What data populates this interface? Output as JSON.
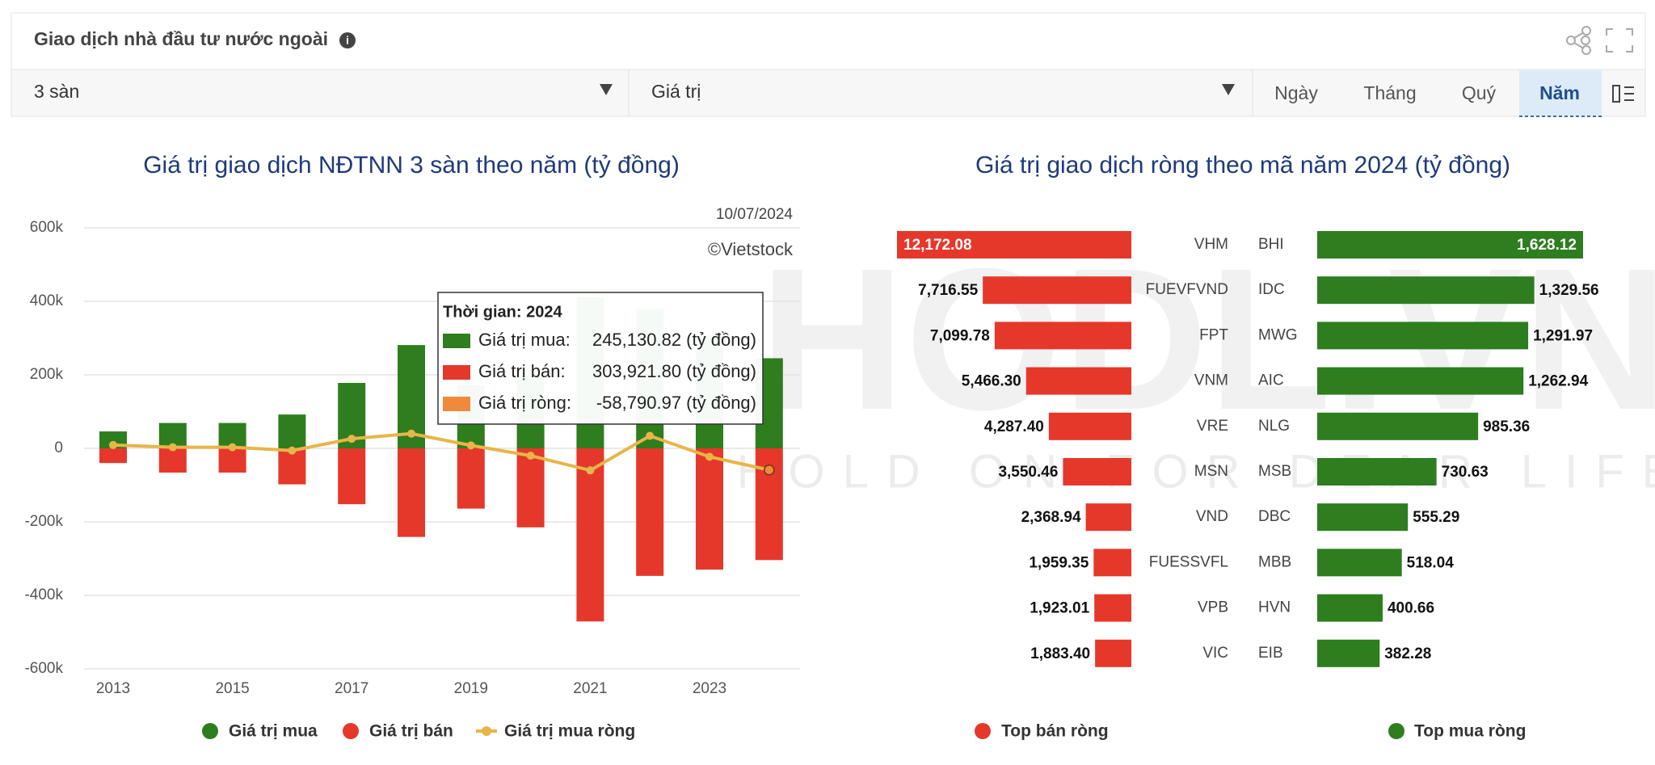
{
  "ui": {
    "title": "Giao dịch nhà đầu tư nước ngoài",
    "filters": [
      "3 sàn",
      "Giá trị"
    ],
    "tabs": [
      "Ngày",
      "Tháng",
      "Quý",
      "Năm"
    ],
    "active_tab": 3
  },
  "watermark": {
    "title": "HODL.VN",
    "subtitle": "HOLD ON FOR DEAR LIFE"
  },
  "chart_data": [
    {
      "type": "bar",
      "title": "Giá trị giao dịch NĐTNN 3 sàn theo năm (tỷ đồng)",
      "annotations": [
        "10/07/2024",
        "©Vietstock"
      ],
      "categories": [
        "2013",
        null,
        "2015",
        null,
        "2017",
        null,
        "2019",
        null,
        "2021",
        null,
        "2023",
        null
      ],
      "series": [
        {
          "name": "Giá trị mua",
          "color": "#2e7d1f",
          "values": [
            46000,
            69000,
            69000,
            92000,
            178000,
            281000,
            172000,
            195000,
            411000,
            381000,
            307000,
            245130.82
          ]
        },
        {
          "name": "Giá trị bán",
          "color": "#e5382b",
          "values": [
            -40000,
            -66000,
            -66000,
            -98000,
            -152000,
            -241000,
            -164000,
            -215000,
            -471000,
            -347000,
            -330000,
            -303921.8
          ]
        },
        {
          "name": "Giá trị mua ròng",
          "color": "#e8b547",
          "type": "line",
          "values": [
            9000,
            3000,
            3000,
            -6000,
            26000,
            40000,
            8000,
            -20000,
            -60000,
            34000,
            -23000,
            -58790.97
          ]
        }
      ],
      "ylim": [
        -600000,
        600000
      ],
      "yticks": [
        {
          "value": -600000,
          "label": "-600k"
        },
        {
          "value": -400000,
          "label": "-400k"
        },
        {
          "value": -200000,
          "label": "-200k"
        },
        0,
        {
          "value": 200000,
          "label": "200k"
        },
        {
          "value": 400000,
          "label": "400k"
        },
        {
          "value": 600000,
          "label": "600k"
        }
      ],
      "grid": true,
      "legend": "bottom",
      "tooltip": {
        "title": "Thời gian: 2024",
        "items": [
          {
            "label": "Giá trị mua:",
            "value": "245,130.82 (tỷ đồng)",
            "color": "#2e7d1f"
          },
          {
            "label": "Giá trị bán:",
            "value": "303,921.80 (tỷ đồng)",
            "color": "#e5382b"
          },
          {
            "label": "Giá trị ròng:",
            "value": "-58,790.97 (tỷ đồng)",
            "color": "#ef8a3c"
          }
        ]
      }
    },
    {
      "type": "barh",
      "title": "Giá trị giao dịch ròng theo mã năm 2024 (tỷ đồng)",
      "legend": "bottom",
      "series": [
        {
          "name": "Top bán ròng",
          "color": "#e5382b",
          "categories": [
            "VHM",
            "FUEVFVND",
            "FPT",
            "VNM",
            "VRE",
            "MSN",
            "VND",
            "FUESSVFL",
            "VPB",
            "VIC"
          ],
          "values": [
            12172.08,
            7716.55,
            7099.78,
            5466.3,
            4287.4,
            3550.46,
            2368.94,
            1959.35,
            1923.01,
            1883.4
          ],
          "value_labels": [
            "12,172.08",
            "7,716.55",
            "7,099.78",
            "5,466.30",
            "4,287.40",
            "3,550.46",
            "2,368.94",
            "1,959.35",
            "1,923.01",
            "1,883.40"
          ]
        },
        {
          "name": "Top mua ròng",
          "color": "#2e7d1f",
          "categories": [
            "BHI",
            "IDC",
            "MWG",
            "AIC",
            "NLG",
            "MSB",
            "DBC",
            "MBB",
            "HVN",
            "EIB"
          ],
          "values": [
            1628.12,
            1329.56,
            1291.97,
            1262.94,
            985.36,
            730.63,
            555.29,
            518.04,
            400.66,
            382.28
          ],
          "value_labels": [
            "1,628.12",
            "1,329.56",
            "1,291.97",
            "1,262.94",
            "985.36",
            "730.63",
            "555.29",
            "518.04",
            "400.66",
            "382.28"
          ]
        }
      ]
    }
  ]
}
